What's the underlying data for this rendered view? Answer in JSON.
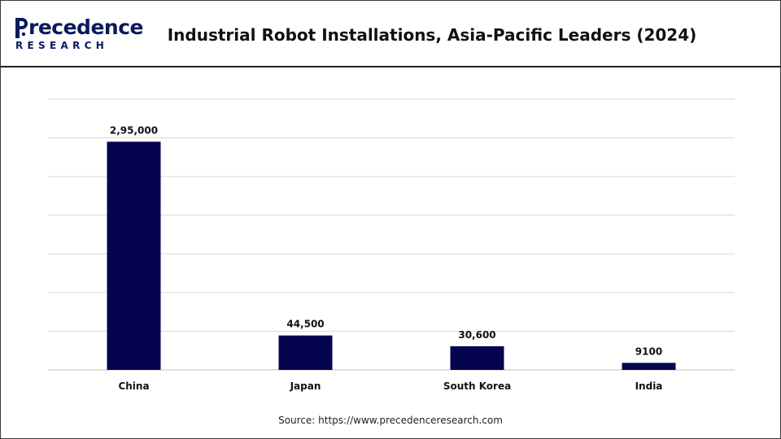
{
  "header": {
    "logo": {
      "word": "recedence",
      "sub": "RESEARCH",
      "initial": "P"
    },
    "title": "Industrial Robot Installations, Asia-Pacific Leaders (2024)"
  },
  "chart_data": {
    "type": "bar",
    "categories": [
      "China",
      "Japan",
      "South Korea",
      "India"
    ],
    "values": [
      295000,
      44500,
      30600,
      9100
    ],
    "value_labels": [
      "2,95,000",
      "44,500",
      "30,600",
      "9100"
    ],
    "ylim": [
      0,
      350000
    ],
    "grid": true,
    "legend": "none",
    "bar_color": "#05054f"
  },
  "footer": {
    "source": "Source: https://www.precedenceresearch.com"
  },
  "colors": {
    "brand": "#0a1a5c",
    "bar": "#05054f",
    "grid": "#d9d9d9"
  }
}
